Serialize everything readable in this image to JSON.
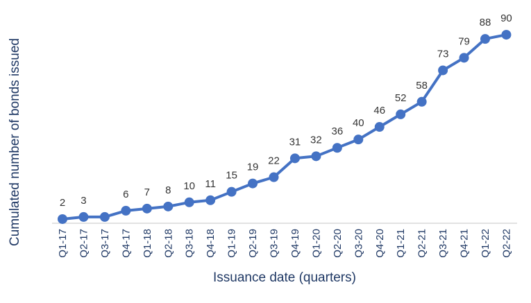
{
  "chart_data": {
    "type": "line",
    "title": "",
    "xlabel": "Issuance date (quarters)",
    "ylabel": "Cumulated number of bonds issued",
    "categories": [
      "Q1-17",
      "Q2-17",
      "Q3-17",
      "Q4-17",
      "Q1-18",
      "Q2-18",
      "Q3-18",
      "Q4-18",
      "Q1-19",
      "Q2-19",
      "Q3-19",
      "Q4-19",
      "Q1-20",
      "Q2-20",
      "Q3-20",
      "Q4-20",
      "Q1-21",
      "Q2-21",
      "Q3-21",
      "Q4-21",
      "Q1-22",
      "Q2-22"
    ],
    "series": [
      {
        "values": [
          2,
          3,
          3,
          6,
          7,
          8,
          10,
          11,
          15,
          19,
          22,
          31,
          32,
          36,
          40,
          46,
          52,
          58,
          73,
          79,
          88,
          90
        ],
        "labels": [
          "2",
          "3",
          "",
          "6",
          "7",
          "8",
          "10",
          "11",
          "15",
          "19",
          "22",
          "31",
          "32",
          "36",
          "40",
          "46",
          "52",
          "58",
          "73",
          "79",
          "88",
          "90"
        ]
      }
    ],
    "ylim": [
      0,
      95
    ],
    "grid": false,
    "legend": "none",
    "colors": {
      "line": "#4472c4",
      "axis_text": "#1f3864",
      "label_text": "#333333",
      "axis_line": "#d9d9d9"
    }
  }
}
